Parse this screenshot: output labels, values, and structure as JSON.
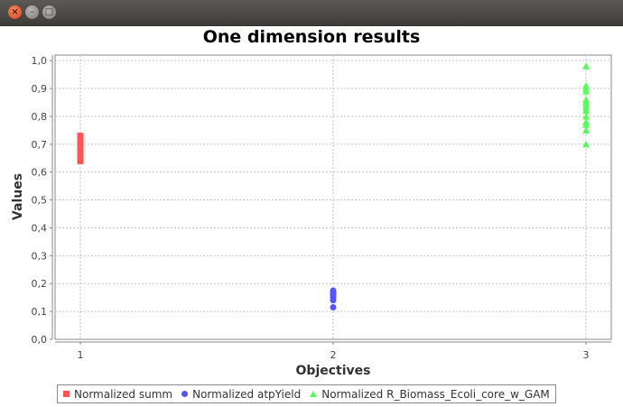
{
  "window": {
    "close_glyph": "×",
    "min_glyph": "–",
    "max_glyph": "□"
  },
  "chart_data": {
    "type": "scatter",
    "title": "One dimension results",
    "xlabel": "Objectives",
    "ylabel": "Values",
    "xlim": [
      0.9,
      3.1
    ],
    "ylim": [
      0.0,
      1.02
    ],
    "x_ticks": [
      1,
      2,
      3
    ],
    "x_tick_labels": [
      "1",
      "2",
      "3"
    ],
    "y_ticks": [
      0.0,
      0.1,
      0.2,
      0.3,
      0.4,
      0.5,
      0.6,
      0.7,
      0.8,
      0.9,
      1.0
    ],
    "y_tick_labels": [
      "0,0",
      "0,1",
      "0,2",
      "0,3",
      "0,4",
      "0,5",
      "0,6",
      "0,7",
      "0,8",
      "0,9",
      "1,0"
    ],
    "grid": true,
    "legend_position": "bottom",
    "series": [
      {
        "name": "Normalized summ",
        "marker": "square",
        "color": "#ff5555",
        "points": [
          {
            "x": 1,
            "y": 0.64
          },
          {
            "x": 1,
            "y": 0.65
          },
          {
            "x": 1,
            "y": 0.66
          },
          {
            "x": 1,
            "y": 0.67
          },
          {
            "x": 1,
            "y": 0.68
          },
          {
            "x": 1,
            "y": 0.69
          },
          {
            "x": 1,
            "y": 0.7
          },
          {
            "x": 1,
            "y": 0.71
          },
          {
            "x": 1,
            "y": 0.72
          },
          {
            "x": 1,
            "y": 0.73
          }
        ]
      },
      {
        "name": "Normalized atpYield",
        "marker": "circle",
        "color": "#5555ff",
        "points": [
          {
            "x": 2,
            "y": 0.115
          },
          {
            "x": 2,
            "y": 0.14
          },
          {
            "x": 2,
            "y": 0.15
          },
          {
            "x": 2,
            "y": 0.155
          },
          {
            "x": 2,
            "y": 0.16
          },
          {
            "x": 2,
            "y": 0.165
          },
          {
            "x": 2,
            "y": 0.17
          },
          {
            "x": 2,
            "y": 0.175
          }
        ]
      },
      {
        "name": "Normalized R_Biomass_Ecoli_core_w_GAM",
        "marker": "triangle",
        "color": "#55ff55",
        "points": [
          {
            "x": 3,
            "y": 0.7
          },
          {
            "x": 3,
            "y": 0.75
          },
          {
            "x": 3,
            "y": 0.77
          },
          {
            "x": 3,
            "y": 0.78
          },
          {
            "x": 3,
            "y": 0.8
          },
          {
            "x": 3,
            "y": 0.82
          },
          {
            "x": 3,
            "y": 0.83
          },
          {
            "x": 3,
            "y": 0.84
          },
          {
            "x": 3,
            "y": 0.85
          },
          {
            "x": 3,
            "y": 0.86
          },
          {
            "x": 3,
            "y": 0.89
          },
          {
            "x": 3,
            "y": 0.9
          },
          {
            "x": 3,
            "y": 0.91
          },
          {
            "x": 3,
            "y": 0.98
          }
        ]
      }
    ]
  }
}
